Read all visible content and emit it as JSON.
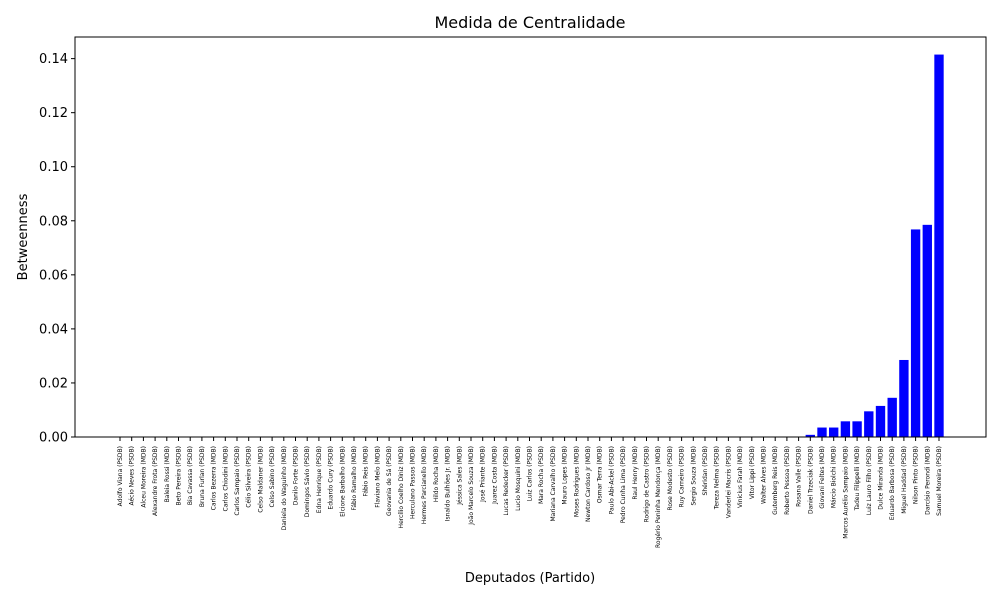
{
  "chart_data": {
    "type": "bar",
    "title": "Medida de Centralidade",
    "xlabel": "Deputados (Partido)",
    "ylabel": "Betweenness",
    "ylim": [
      0,
      0.148
    ],
    "yticks": [
      "0.00",
      "0.02",
      "0.04",
      "0.06",
      "0.08",
      "0.10",
      "0.12",
      "0.14"
    ],
    "ytick_values": [
      0,
      0.02,
      0.04,
      0.06,
      0.08,
      0.1,
      0.12,
      0.14
    ],
    "bar_color": "#0000ff",
    "grid": false,
    "categories": [
      "Adolfo Viana (PSDB)",
      "Aécio Neves (PSDB)",
      "Alceu Moreira (MDB)",
      "Alexandre Frota (PSDB)",
      "Baleia Rossi (MDB)",
      "Beto Pereira (PSDB)",
      "Bia Cavassa (PSDB)",
      "Bruna Furlan (PSDB)",
      "Carlos Bezerra (MDB)",
      "Carlos Chiodini (MDB)",
      "Carlos Sampaio (PSDB)",
      "Célio Silveira (PSDB)",
      "Celso Maldaner (MDB)",
      "Celso Sabino (PSDB)",
      "Daniela do Waguinho (MDB)",
      "Danilo Forte (PSDB)",
      "Domingos Sávio (PSDB)",
      "Edna Henrique (PSDB)",
      "Eduardo Cury (PSDB)",
      "Elcione Barbalho (MDB)",
      "Fábio Ramalho (MDB)",
      "Fábio Reis (MDB)",
      "Flaviano Melo (MDB)",
      "Geovania de Sá (PSDB)",
      "Hercílio Coelho Diniz (MDB)",
      "Herculano Passos (MDB)",
      "Hermes Parcianello (MDB)",
      "Hildo Rocha (MDB)",
      "Isnaldo Bulhões Jr. (MDB)",
      "Jéssica Sales (MDB)",
      "João Marcelo Souza (MDB)",
      "José Priante (MDB)",
      "Juarez Costa (MDB)",
      "Lucas Redecker (PSDB)",
      "Lucio Mosquini (MDB)",
      "Luiz Carlos (PSDB)",
      "Mara Rocha (PSDB)",
      "Mariana Carvalho (PSDB)",
      "Mauro Lopes (MDB)",
      "Moses Rodrigues (MDB)",
      "Newton Cardoso Jr (MDB)",
      "Osmar Terra (MDB)",
      "Paulo Abi-Ackel (PSDB)",
      "Pedro Cunha Lima (PSDB)",
      "Raul Henry (MDB)",
      "Rodrigo de Castro (PSDB)",
      "Rogério Peninha Mendonça (MDB)",
      "Rose Modesto (PSDB)",
      "Ruy Carneiro (PSDB)",
      "Sergio Souza (MDB)",
      "Shéridan (PSDB)",
      "Tereza Nelma (PSDB)",
      "Vanderlei Macris (PSDB)",
      "Vinicius Farah (MDB)",
      "Vitor Lippi (PSDB)",
      "Walter Alves (MDB)",
      "Gutemberg Reis (MDB)",
      "Roberto Pessoa (PSDB)",
      "Rosana Valle (PSDB)",
      "Daniel Trzeciak (PSDB)",
      "Giovani Feltes (MDB)",
      "Márcio Biolchi (MDB)",
      "Marcos Aurélio Sampaio (MDB)",
      "Tadeu Filippelli (MDB)",
      "Luiz Lauro Filho (PSDB)",
      "Dulce Miranda (MDB)",
      "Eduardo Barbosa (PSDB)",
      "Miguel Haddad (PSDB)",
      "Nilson Pinto (PSDB)",
      "Darcísio Perondi (MDB)",
      "Samuel Moreira (PSDB)"
    ],
    "values": [
      0,
      0,
      0,
      0,
      0,
      0,
      0,
      0,
      0,
      0,
      0,
      0,
      0,
      0,
      0,
      0,
      0,
      0,
      0,
      0,
      0,
      0,
      0,
      0,
      0,
      0,
      0,
      0,
      0,
      0,
      0,
      0,
      0,
      0,
      0,
      0,
      0,
      0,
      0,
      0,
      0,
      0,
      0,
      0,
      0,
      0,
      0,
      0,
      0,
      0,
      0,
      0,
      0,
      0,
      0,
      0,
      0,
      0,
      0,
      0.0008,
      0.0035,
      0.0035,
      0.0058,
      0.0058,
      0.0095,
      0.0115,
      0.0145,
      0.0285,
      0.0768,
      0.0785,
      0.1415
    ]
  }
}
